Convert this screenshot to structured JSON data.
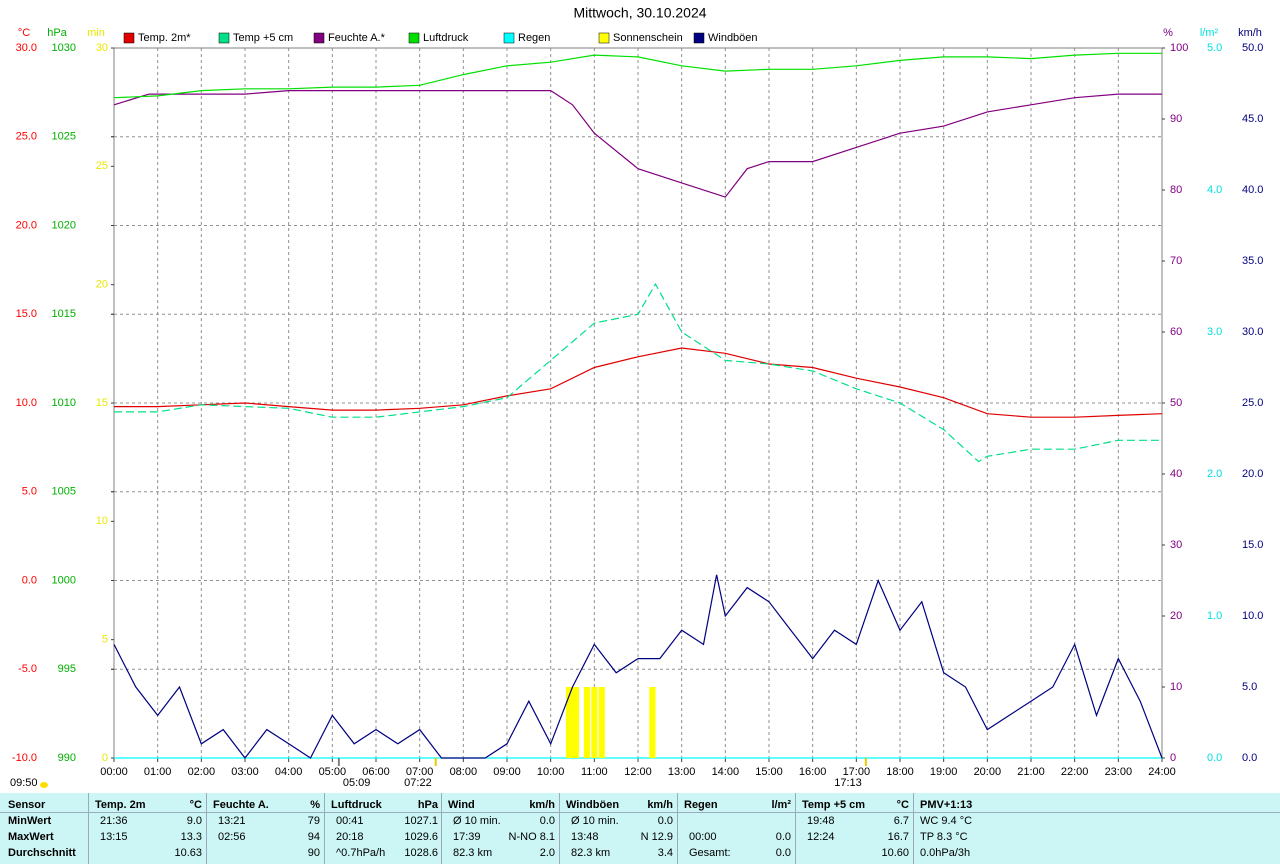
{
  "chart_data": {
    "type": "line",
    "title": "Mittwoch, 30.10.2024",
    "xlim": [
      0,
      24
    ],
    "xticks": [
      {
        "value": 0,
        "label": "00:00"
      },
      {
        "value": 1,
        "label": "01:00"
      },
      {
        "value": 2,
        "label": "02:00"
      },
      {
        "value": 3,
        "label": "03:00"
      },
      {
        "value": 4,
        "label": "04:00"
      },
      {
        "value": 5,
        "label": "05:00"
      },
      {
        "value": 6,
        "label": "06:00"
      },
      {
        "value": 7,
        "label": "07:00"
      },
      {
        "value": 8,
        "label": "08:00"
      },
      {
        "value": 9,
        "label": "09:00"
      },
      {
        "value": 10,
        "label": "10:00"
      },
      {
        "value": 11,
        "label": "11:00"
      },
      {
        "value": 12,
        "label": "12:00"
      },
      {
        "value": 13,
        "label": "13:00"
      },
      {
        "value": 14,
        "label": "14:00"
      },
      {
        "value": 15,
        "label": "15:00"
      },
      {
        "value": 16,
        "label": "16:00"
      },
      {
        "value": 17,
        "label": "17:00"
      },
      {
        "value": 18,
        "label": "18:00"
      },
      {
        "value": 19,
        "label": "19:00"
      },
      {
        "value": 20,
        "label": "20:00"
      },
      {
        "value": 21,
        "label": "21:00"
      },
      {
        "value": 22,
        "label": "22:00"
      },
      {
        "value": 23,
        "label": "23:00"
      },
      {
        "value": 24,
        "label": "24:00"
      }
    ],
    "grid": true,
    "axes": [
      {
        "label": "°C",
        "color": "#ff0000",
        "side": "left",
        "lim": [
          -10,
          30
        ],
        "ticks": [
          {
            "value": -10,
            "label": "-10.0"
          },
          {
            "value": -5,
            "label": "-5.0"
          },
          {
            "value": 0,
            "label": "0.0"
          },
          {
            "value": 5,
            "label": "5.0"
          },
          {
            "value": 10,
            "label": "10.0"
          },
          {
            "value": 15,
            "label": "15.0"
          },
          {
            "value": 20,
            "label": "20.0"
          },
          {
            "value": 25,
            "label": "25.0"
          },
          {
            "value": 30,
            "label": "30.0"
          }
        ]
      },
      {
        "label": "hPa",
        "color": "#00b000",
        "side": "left",
        "lim": [
          990,
          1030
        ],
        "ticks": [
          990,
          995,
          1000,
          1005,
          1010,
          1015,
          1020,
          1025,
          1030
        ]
      },
      {
        "label": "min",
        "color": "#e8e800",
        "side": "left",
        "lim": [
          0,
          30
        ],
        "ticks": [
          0,
          5,
          10,
          15,
          20,
          25,
          30
        ]
      },
      {
        "label": "%",
        "color": "#800080",
        "side": "right",
        "lim": [
          0,
          100
        ],
        "ticks": [
          0,
          10,
          20,
          30,
          40,
          50,
          60,
          70,
          80,
          90,
          100
        ]
      },
      {
        "label": "l/m²",
        "color": "#00e0e0",
        "side": "right",
        "lim": [
          0,
          5
        ],
        "ticks": [
          {
            "value": 0,
            "label": "0.0"
          },
          {
            "value": 1,
            "label": "1.0"
          },
          {
            "value": 2,
            "label": "2.0"
          },
          {
            "value": 3,
            "label": "3.0"
          },
          {
            "value": 4,
            "label": "4.0"
          },
          {
            "value": 5,
            "label": "5.0"
          }
        ]
      },
      {
        "label": "km/h",
        "color": "#000080",
        "side": "right",
        "lim": [
          0,
          50
        ],
        "ticks": [
          {
            "value": 0,
            "label": "0.0"
          },
          {
            "value": 5,
            "label": "5.0"
          },
          {
            "value": 10,
            "label": "10.0"
          },
          {
            "value": 15,
            "label": "15.0"
          },
          {
            "value": 20,
            "label": "20.0"
          },
          {
            "value": 25,
            "label": "25.0"
          },
          {
            "value": 30,
            "label": "30.0"
          },
          {
            "value": 35,
            "label": "35.0"
          },
          {
            "value": 40,
            "label": "40.0"
          },
          {
            "value": 45,
            "label": "45.0"
          },
          {
            "value": 50,
            "label": "50.0"
          }
        ]
      }
    ],
    "series": [
      {
        "name": "Temp. 2m*",
        "color": "#e00000",
        "axis": 0,
        "style": "solid",
        "x": [
          0,
          1,
          2,
          3,
          4,
          5,
          6,
          7,
          8,
          9,
          10,
          11,
          12,
          13,
          14,
          15,
          16,
          17,
          18,
          19,
          20,
          21,
          22,
          23,
          24
        ],
        "values": [
          9.8,
          9.8,
          9.9,
          10.0,
          9.8,
          9.6,
          9.6,
          9.7,
          9.9,
          10.4,
          10.8,
          12.0,
          12.6,
          13.1,
          12.8,
          12.2,
          12.0,
          11.4,
          10.9,
          10.3,
          9.4,
          9.2,
          9.2,
          9.3,
          9.4
        ]
      },
      {
        "name": "Temp +5 cm",
        "color": "#00e088",
        "axis": 0,
        "style": "dashed",
        "x": [
          0,
          1,
          2,
          3,
          4,
          5,
          6,
          7,
          8,
          9,
          10,
          11,
          12,
          12.4,
          13,
          14,
          15,
          16,
          17,
          18,
          19,
          19.8,
          20,
          21,
          22,
          23,
          24
        ],
        "values": [
          9.5,
          9.5,
          9.9,
          9.8,
          9.7,
          9.2,
          9.2,
          9.5,
          9.8,
          10.3,
          12.4,
          14.5,
          15.0,
          16.7,
          14.0,
          12.4,
          12.2,
          11.8,
          10.8,
          10.0,
          8.5,
          6.7,
          7.0,
          7.4,
          7.4,
          7.9,
          7.9
        ]
      },
      {
        "name": "Feuchte A.*",
        "color": "#800080",
        "axis": 3,
        "style": "solid",
        "x": [
          0,
          0.8,
          3,
          4,
          10,
          10.5,
          11,
          12,
          13,
          14,
          14.5,
          15,
          16,
          17,
          18,
          19,
          20,
          21,
          22,
          23,
          24
        ],
        "values": [
          92,
          93.5,
          93.5,
          94,
          94,
          92,
          88,
          83,
          81,
          79,
          83,
          84,
          84,
          86,
          88,
          89,
          91,
          92,
          93,
          93.5,
          93.5
        ]
      },
      {
        "name": "Luftdruck",
        "color": "#00e000",
        "axis": 1,
        "style": "solid",
        "x": [
          0,
          1,
          2,
          3,
          4,
          5,
          6,
          7,
          8,
          9,
          10,
          11,
          12,
          13,
          14,
          15,
          16,
          17,
          18,
          19,
          20,
          21,
          22,
          23,
          24
        ],
        "values": [
          1027.2,
          1027.3,
          1027.6,
          1027.7,
          1027.7,
          1027.8,
          1027.8,
          1027.9,
          1028.5,
          1029.0,
          1029.2,
          1029.6,
          1029.5,
          1029.0,
          1028.7,
          1028.8,
          1028.8,
          1029.0,
          1029.3,
          1029.5,
          1029.5,
          1029.4,
          1029.6,
          1029.7,
          1029.7
        ]
      },
      {
        "name": "Regen",
        "color": "#00ffff",
        "axis": 4,
        "style": "solid",
        "x": [
          0,
          24
        ],
        "values": [
          0,
          0
        ]
      },
      {
        "name": "Sonnenschein",
        "color": "#ffff00",
        "axis": 2,
        "style": "bar",
        "x": [
          10.42,
          10.5,
          10.58,
          10.83,
          11.0,
          11.17,
          12.33
        ],
        "values": [
          3,
          3,
          3,
          3,
          3,
          3,
          3
        ]
      },
      {
        "name": "Windböen",
        "color": "#000080",
        "axis": 5,
        "style": "solid",
        "x": [
          0,
          0.5,
          1,
          1.5,
          2,
          2.5,
          3,
          3.5,
          4,
          4.5,
          5,
          5.5,
          6,
          6.5,
          7,
          7.5,
          8,
          8.5,
          9,
          9.5,
          10,
          10.5,
          11,
          11.5,
          12,
          12.5,
          13,
          13.5,
          13.8,
          14,
          14.5,
          15,
          15.5,
          16,
          16.5,
          17,
          17.5,
          18,
          18.5,
          19,
          19.5,
          20,
          20.5,
          21,
          21.5,
          22,
          22.5,
          23,
          23.5,
          24
        ],
        "values": [
          8,
          5,
          3,
          5,
          1,
          2,
          0,
          2,
          1,
          0,
          3,
          1,
          2,
          1,
          2,
          0,
          0,
          0,
          1,
          4,
          1,
          5,
          8,
          6,
          7,
          7,
          9,
          8,
          12.9,
          10,
          12,
          11,
          9,
          7,
          9,
          8,
          12.5,
          9,
          11,
          6,
          5,
          2,
          3,
          4,
          5,
          8,
          3,
          7,
          4,
          0
        ]
      }
    ],
    "day_length": "09:50",
    "annotations": [
      {
        "text": "05:09",
        "x": 5.15
      },
      {
        "text": "07:22",
        "x": 7.367
      },
      {
        "text": "17:13",
        "x": 17.217
      }
    ]
  },
  "table": {
    "sensor": "Sensor",
    "columns": [
      {
        "label": "Temp. 2m",
        "unit": "°C"
      },
      {
        "label": "Feuchte A.",
        "unit": "%"
      },
      {
        "label": "Luftdruck",
        "unit": "hPa"
      },
      {
        "label": "Wind",
        "unit": "km/h"
      },
      {
        "label": "Windböen",
        "unit": "km/h"
      },
      {
        "label": "Regen",
        "unit": "l/m²"
      },
      {
        "label": "Temp +5 cm",
        "unit": "°C"
      },
      {
        "label": "PMV+1:13",
        "unit": null
      }
    ],
    "rows": [
      {
        "label": "MinWert",
        "cells": [
          [
            "21:36",
            "9.0"
          ],
          [
            "13:21",
            "79"
          ],
          [
            "00:41",
            "1027.1"
          ],
          [
            "Ø 10 min.",
            "0.0"
          ],
          [
            "Ø 10 min.",
            "0.0"
          ],
          null,
          [
            "19:48",
            "6.7"
          ],
          [
            "WC 9.4 °C"
          ]
        ]
      },
      {
        "label": "MaxWert",
        "cells": [
          [
            "13:15",
            "13.3"
          ],
          [
            "02:56",
            "94"
          ],
          [
            "20:18",
            "1029.6"
          ],
          [
            "17:39",
            "N-NO 8.1"
          ],
          [
            "13:48",
            "N 12.9"
          ],
          [
            "00:00",
            "0.0"
          ],
          [
            "12:24",
            "16.7"
          ],
          [
            "TP 8.3 °C"
          ]
        ]
      },
      {
        "label": "Durchschnitt",
        "cells": [
          [
            null,
            "10.63"
          ],
          [
            null,
            "90"
          ],
          [
            "^0.7hPa/h",
            "1028.6"
          ],
          [
            "82.3 km",
            "2.0"
          ],
          [
            "82.3 km",
            "3.4"
          ],
          [
            "Gesamt:",
            "0.0"
          ],
          [
            null,
            "10.60"
          ],
          [
            "0.0hPa/3h"
          ]
        ]
      }
    ]
  }
}
